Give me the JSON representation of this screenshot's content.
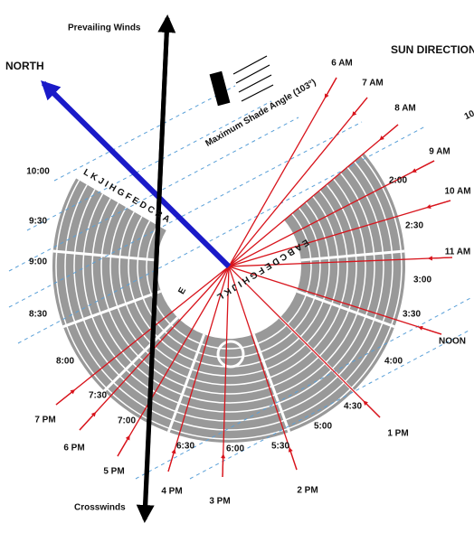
{
  "labels": {
    "north": "NORTH",
    "prevailing_winds": "Prevailing Winds",
    "sun_direction": "SUN DIRECTION",
    "crosswinds": "Crosswinds",
    "shade_angle": "Maximum Shade Angle (103°)",
    "cut_label": "10"
  },
  "row_letters_left": "L K J I H G F E D C B A",
  "row_letters_right": "E A B C D E F G H I J K L",
  "aisle_mark": "E",
  "sun_times": [
    "6 AM",
    "7 AM",
    "8 AM",
    "9 AM",
    "10 AM",
    "11 AM",
    "NOON",
    "1 PM",
    "2 PM",
    "3 PM",
    "4 PM",
    "5 PM",
    "6 PM",
    "7 PM"
  ],
  "seat_times": [
    "10:00",
    "9:30",
    "9:00",
    "8:30",
    "8:00",
    "7:30",
    "7:00",
    "6:30",
    "6:00",
    "5:30",
    "5:00",
    "4:30",
    "4:00",
    "3:30",
    "3:00",
    "2:30",
    "2:00"
  ]
}
